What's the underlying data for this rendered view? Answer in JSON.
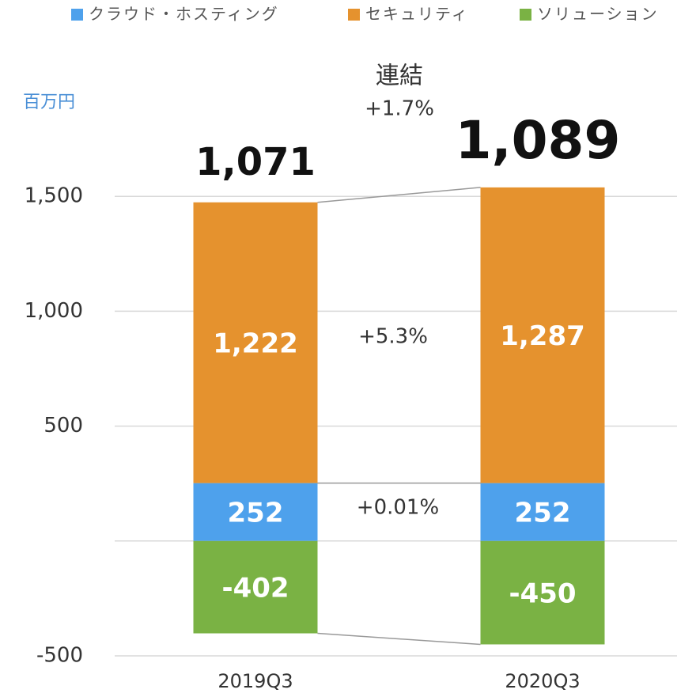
{
  "chart_data": {
    "type": "stacked_bar",
    "unit_label": "百万円",
    "categories": [
      "2019Q3",
      "2020Q3"
    ],
    "series": [
      {
        "name": "クラウド・ホスティング",
        "color": "#4ea1ec",
        "values": [
          252,
          252
        ],
        "value_labels": [
          "252",
          "252"
        ]
      },
      {
        "name": "セキュリティ",
        "color": "#e5922e",
        "values": [
          1222,
          1287
        ],
        "value_labels": [
          "1,222",
          "1,287"
        ]
      },
      {
        "name": "ソリューション",
        "color": "#7ab244",
        "values": [
          -402,
          -450
        ]
      }
    ],
    "totals": [
      1071,
      1089
    ],
    "total_labels": [
      "1,071",
      "1,089"
    ],
    "annotations": [
      "連結",
      "+1.7%",
      "+5.3%",
      "+0.01%"
    ],
    "ylim": [
      -500,
      2000
    ],
    "yticks": [
      -500,
      {
        "value": 0,
        "label": null
      },
      500,
      {
        "value": 1000,
        "label": "1,000"
      },
      {
        "value": 1500,
        "label": "1,500"
      }
    ],
    "grid": true,
    "legend": "top"
  }
}
